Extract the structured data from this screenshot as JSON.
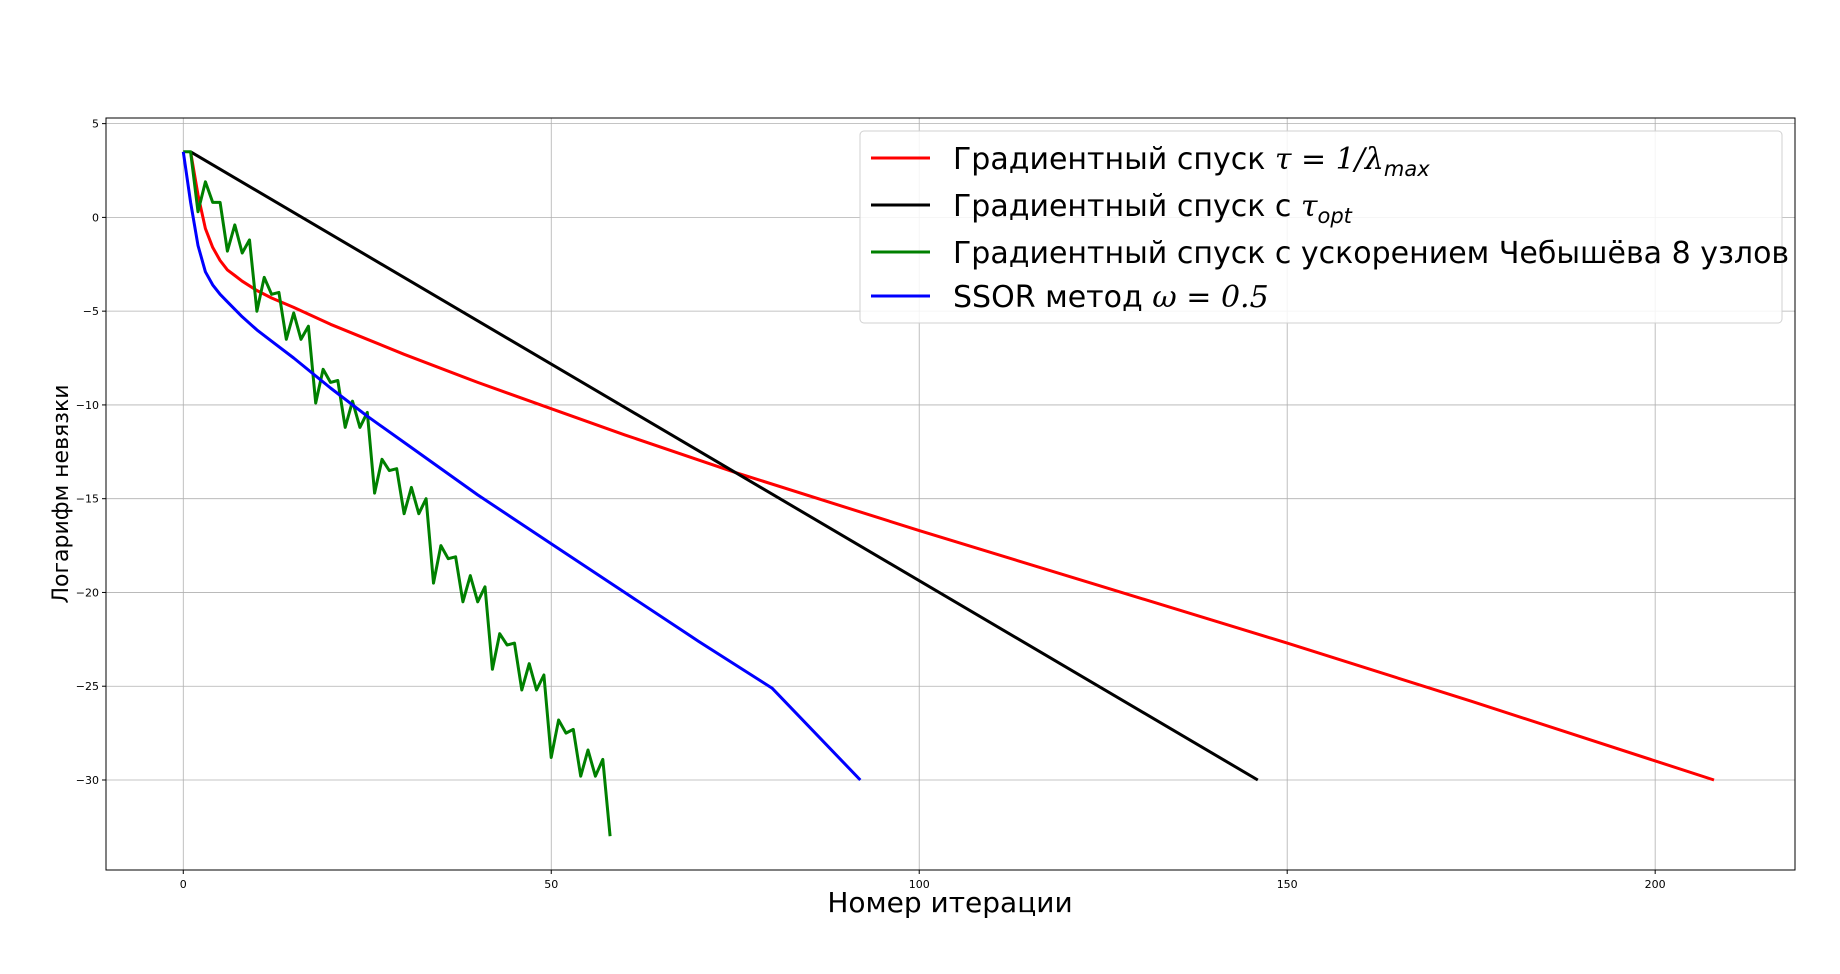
{
  "chart_data": {
    "type": "line",
    "title": "",
    "xlabel": "Номер итерации",
    "ylabel": "Логарифм невязки",
    "xlim": [
      -10.5,
      219
    ],
    "ylim": [
      -34.8,
      5.3
    ],
    "xticks": [
      0,
      50,
      100,
      150,
      200
    ],
    "yticks": [
      5,
      0,
      -5,
      -10,
      -15,
      -20,
      -25,
      -30
    ],
    "xtick_labels": [
      "0",
      "50",
      "100",
      "150",
      "200"
    ],
    "ytick_labels": [
      "5",
      "0",
      "−5",
      "−10",
      "−15",
      "−20",
      "−25",
      "−30"
    ],
    "grid": true,
    "legend_position": "top-right",
    "series": [
      {
        "name_plain": "Градиентный спуск ",
        "name_math": "τ = 1/λ",
        "name_sub": "max",
        "color": "#ff0000",
        "x": [
          1,
          2,
          3,
          4,
          5,
          6,
          7,
          8,
          10,
          12,
          15,
          20,
          25,
          30,
          40,
          50,
          60,
          75,
          100,
          125,
          150,
          175,
          208
        ],
        "y": [
          3.5,
          1.2,
          -0.6,
          -1.6,
          -2.3,
          -2.8,
          -3.1,
          -3.4,
          -3.9,
          -4.3,
          -4.8,
          -5.7,
          -6.5,
          -7.3,
          -8.8,
          -10.2,
          -11.6,
          -13.6,
          -16.7,
          -19.7,
          -22.7,
          -25.8,
          -30.0
        ]
      },
      {
        "name_plain": "Градиентный спуск с ",
        "name_math": "τ",
        "name_sub": "opt",
        "color": "#000000",
        "x": [
          1,
          146
        ],
        "y": [
          3.5,
          -30.0
        ]
      },
      {
        "name_plain": "Градиентный спуск с ускорением Чебышёва 8 узлов",
        "name_math": "",
        "name_sub": "",
        "color": "#008000",
        "x": [
          0,
          1,
          2,
          3,
          4,
          5,
          6,
          7,
          8,
          9,
          10,
          11,
          12,
          13,
          14,
          15,
          16,
          17,
          18,
          19,
          20,
          21,
          22,
          23,
          24,
          25,
          26,
          27,
          28,
          29,
          30,
          31,
          32,
          33,
          34,
          35,
          36,
          37,
          38,
          39,
          40,
          41,
          42,
          43,
          44,
          45,
          46,
          47,
          48,
          49,
          50,
          51,
          52,
          53,
          54,
          55,
          56,
          57,
          58
        ],
        "y": [
          3.5,
          3.5,
          0.3,
          1.9,
          0.8,
          0.8,
          -1.8,
          -0.4,
          -1.9,
          -1.2,
          -5.0,
          -3.2,
          -4.1,
          -4.0,
          -6.5,
          -5.1,
          -6.5,
          -5.8,
          -9.9,
          -8.1,
          -8.8,
          -8.7,
          -11.2,
          -9.8,
          -11.2,
          -10.4,
          -14.7,
          -12.9,
          -13.5,
          -13.4,
          -15.8,
          -14.4,
          -15.8,
          -15.0,
          -19.5,
          -17.5,
          -18.2,
          -18.1,
          -20.5,
          -19.1,
          -20.5,
          -19.7,
          -24.1,
          -22.2,
          -22.8,
          -22.7,
          -25.2,
          -23.8,
          -25.2,
          -24.4,
          -28.8,
          -26.8,
          -27.5,
          -27.3,
          -29.8,
          -28.4,
          -29.8,
          -28.9,
          -33.0
        ]
      },
      {
        "name_plain": "SSOR метод ",
        "name_math": "ω = 0.5",
        "name_sub": "",
        "color": "#0000ff",
        "x": [
          0,
          1,
          2,
          3,
          4,
          5,
          6,
          8,
          10,
          12,
          15,
          20,
          25,
          30,
          40,
          50,
          60,
          70,
          80,
          92
        ],
        "y": [
          3.5,
          0.8,
          -1.5,
          -2.9,
          -3.6,
          -4.1,
          -4.5,
          -5.3,
          -6.0,
          -6.6,
          -7.5,
          -9.1,
          -10.6,
          -12.0,
          -14.8,
          -17.4,
          -20.0,
          -22.6,
          -25.1,
          -30.0
        ]
      }
    ]
  }
}
